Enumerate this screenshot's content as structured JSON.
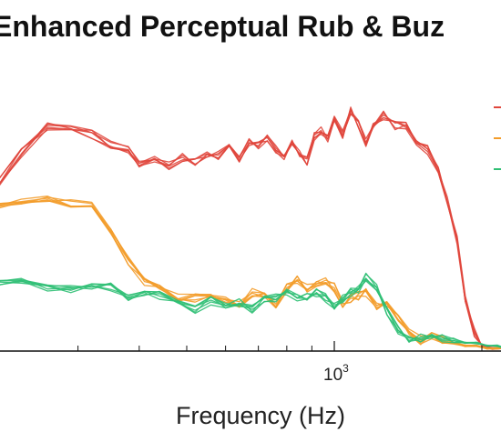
{
  "chart_data": {
    "type": "line",
    "title": "Enhanced Perceptual Rub & Buz",
    "xlabel": "Frequency (Hz)",
    "ylabel": "",
    "xscale": "log",
    "xlim": [
      200,
      2600
    ],
    "ylim": [
      0,
      1
    ],
    "grid": false,
    "legend_placement": "top-right",
    "x_tick_labels": [
      {
        "value": 1000,
        "base": "10",
        "exponent": "3"
      }
    ],
    "x_minor_ticks": [
      300,
      400,
      500,
      600,
      700,
      800,
      900,
      2000
    ],
    "series": [
      {
        "color": "#e0463c",
        "x": [
          200,
          230,
          260,
          290,
          320,
          350,
          380,
          400,
          430,
          460,
          490,
          520,
          550,
          580,
          610,
          640,
          670,
          700,
          730,
          760,
          790,
          820,
          850,
          880,
          910,
          940,
          970,
          1000,
          1040,
          1080,
          1120,
          1160,
          1200,
          1260,
          1330,
          1400,
          1470,
          1550,
          1630,
          1700,
          1780,
          1850,
          1930,
          2000,
          2100,
          2200,
          2300,
          2400,
          2500
        ],
        "values": [
          0.6,
          0.75,
          0.85,
          0.84,
          0.82,
          0.78,
          0.76,
          0.71,
          0.72,
          0.7,
          0.73,
          0.71,
          0.75,
          0.74,
          0.78,
          0.73,
          0.79,
          0.78,
          0.8,
          0.76,
          0.74,
          0.78,
          0.75,
          0.72,
          0.81,
          0.83,
          0.8,
          0.88,
          0.82,
          0.91,
          0.86,
          0.79,
          0.86,
          0.89,
          0.85,
          0.85,
          0.79,
          0.76,
          0.68,
          0.57,
          0.42,
          0.2,
          0.07,
          0.02,
          0.01,
          0.01,
          0.02,
          0.01,
          0.0
        ]
      },
      {
        "color": "#f39c2a",
        "x": [
          200,
          230,
          260,
          290,
          320,
          350,
          380,
          410,
          440,
          480,
          520,
          560,
          600,
          640,
          680,
          720,
          760,
          800,
          840,
          880,
          920,
          960,
          1000,
          1040,
          1080,
          1120,
          1160,
          1220,
          1280,
          1350,
          1420,
          1500,
          1580,
          1660,
          1750,
          1850,
          1950,
          2050,
          2150,
          2250,
          2400,
          2500
        ],
        "values": [
          0.54,
          0.57,
          0.58,
          0.56,
          0.55,
          0.46,
          0.34,
          0.26,
          0.24,
          0.2,
          0.2,
          0.21,
          0.19,
          0.18,
          0.22,
          0.22,
          0.18,
          0.24,
          0.27,
          0.24,
          0.26,
          0.26,
          0.24,
          0.18,
          0.2,
          0.21,
          0.22,
          0.17,
          0.18,
          0.12,
          0.08,
          0.04,
          0.06,
          0.04,
          0.03,
          0.02,
          0.02,
          0.01,
          0.01,
          0.01,
          0.01,
          0.0
        ]
      },
      {
        "color": "#2fbf74",
        "x": [
          200,
          230,
          260,
          290,
          320,
          350,
          380,
          410,
          440,
          480,
          520,
          560,
          600,
          640,
          680,
          720,
          760,
          800,
          840,
          880,
          920,
          960,
          1000,
          1040,
          1080,
          1120,
          1160,
          1220,
          1280,
          1350,
          1420,
          1500,
          1580,
          1660,
          1750,
          1850,
          1950,
          2050,
          2150,
          2250,
          2400,
          2500
        ],
        "values": [
          0.25,
          0.26,
          0.24,
          0.23,
          0.25,
          0.24,
          0.2,
          0.22,
          0.21,
          0.18,
          0.16,
          0.19,
          0.17,
          0.18,
          0.16,
          0.19,
          0.2,
          0.22,
          0.2,
          0.21,
          0.22,
          0.2,
          0.17,
          0.2,
          0.22,
          0.23,
          0.28,
          0.24,
          0.15,
          0.08,
          0.05,
          0.05,
          0.06,
          0.05,
          0.04,
          0.03,
          0.03,
          0.02,
          0.02,
          0.01,
          0.01,
          0.0
        ]
      }
    ],
    "legend_swatches": [
      "#e0463c",
      "#f39c2a",
      "#2fbf74"
    ]
  }
}
